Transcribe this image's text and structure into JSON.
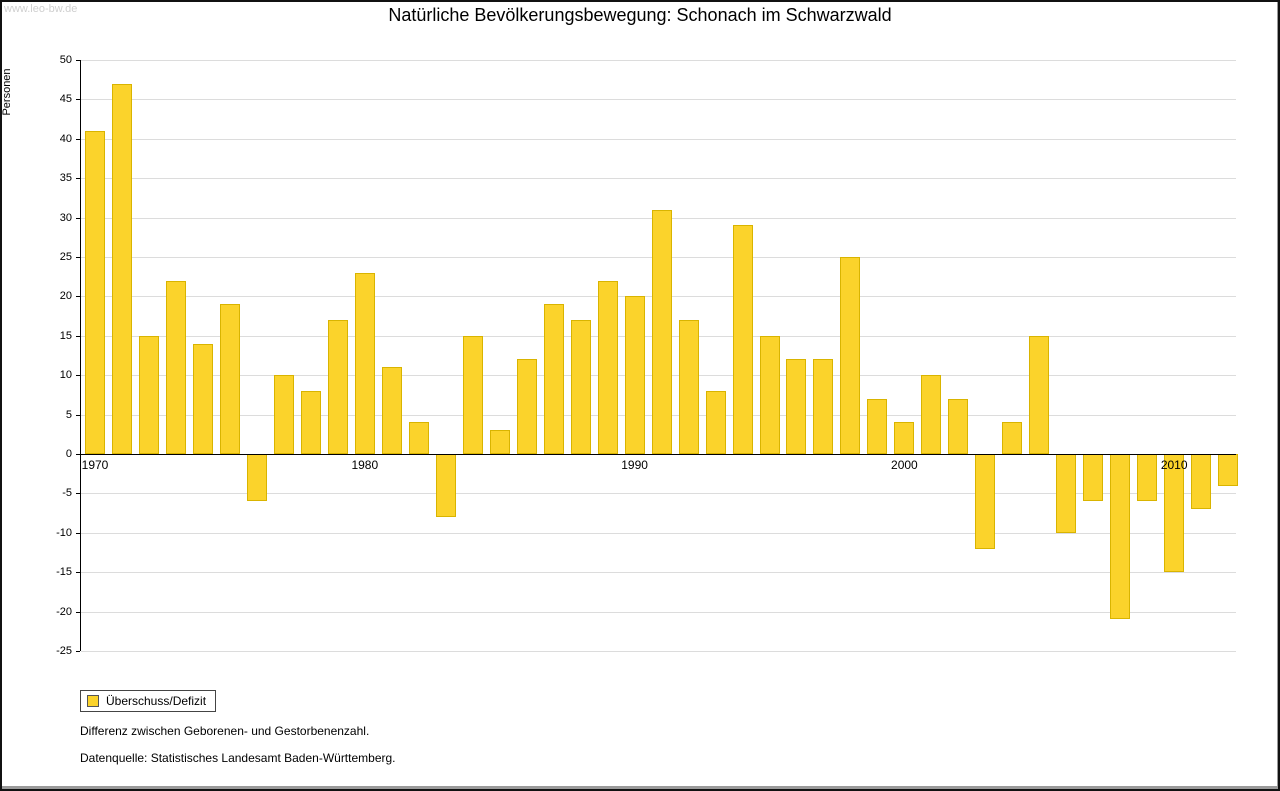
{
  "watermark": "www.leo-bw.de",
  "title": "Natürliche Bevölkerungsbewegung: Schonach im Schwarzwald",
  "footnotes": [
    "Differenz zwischen Geborenen- und Gestorbenenzahl.",
    "Datenquelle: Statistisches Landesamt Baden-Württemberg."
  ],
  "chart_data": {
    "type": "bar",
    "title": "Natürliche Bevölkerungsbewegung: Schonach im Schwarzwald",
    "xlabel": "",
    "ylabel": "Personen",
    "ylim": [
      -25,
      50
    ],
    "ytick_step": 5,
    "grid": true,
    "categories": [
      "1970",
      "1971",
      "1972",
      "1973",
      "1974",
      "1975",
      "1976",
      "1977",
      "1978",
      "1979",
      "1980",
      "1981",
      "1982",
      "1983",
      "1984",
      "1985",
      "1986",
      "1987",
      "1988",
      "1989",
      "1990",
      "1991",
      "1992",
      "1993",
      "1994",
      "1995",
      "1996",
      "1997",
      "1998",
      "1999",
      "2000",
      "2001",
      "2002",
      "2003",
      "2004",
      "2005",
      "2006",
      "2007",
      "2008",
      "2009",
      "2010",
      "2011",
      "2012"
    ],
    "values": [
      41,
      47,
      15,
      22,
      14,
      19,
      -6,
      10,
      8,
      17,
      23,
      11,
      4,
      -8,
      15,
      3,
      12,
      19,
      17,
      22,
      20,
      31,
      17,
      8,
      29,
      15,
      12,
      12,
      25,
      7,
      4,
      10,
      7,
      -12,
      4,
      15,
      -10,
      -6,
      -21,
      -6,
      -15,
      -7,
      -4
    ],
    "x_tick_labels": [
      "1970",
      "1980",
      "1990",
      "2000",
      "2010"
    ],
    "bar_color": "#FBD32B",
    "bar_border_color": "#D9B400",
    "grid_color": "#dcdcdc",
    "legend": {
      "label": "Überschuss/Defizit",
      "position": "bottom-left"
    }
  }
}
